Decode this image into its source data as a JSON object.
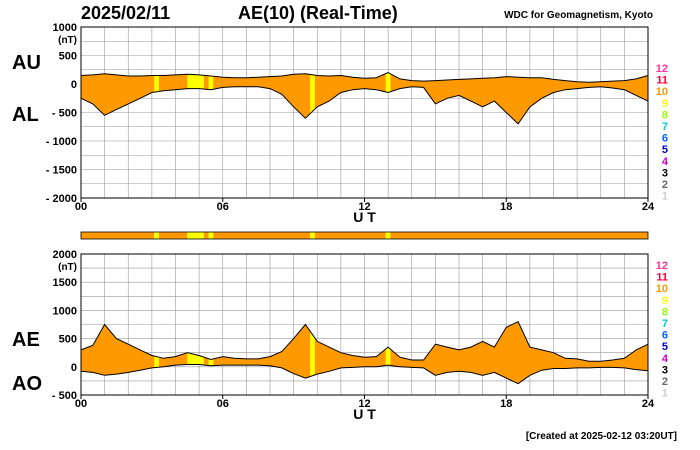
{
  "header": {
    "date": "2025/02/11",
    "index_name": "AE(10) (Real-Time)",
    "institute": "WDC for Geomagnetism, Kyoto"
  },
  "footer": {
    "created": "[Created at 2025-02-12 03:20UT]"
  },
  "colors": {
    "fill": "#ff9900",
    "highlight": "#ffff00",
    "line": "#000000",
    "grid": "#999999"
  },
  "station_scale": {
    "labels": [
      "12",
      "11",
      "10",
      "9",
      "8",
      "7",
      "6",
      "5",
      "4",
      "3",
      "2",
      "1"
    ],
    "colors": [
      "#ff3399",
      "#ff0033",
      "#ff9900",
      "#ffff00",
      "#99ff00",
      "#00cccc",
      "#0066ff",
      "#0000cc",
      "#cc00cc",
      "#000000",
      "#666666",
      "#cccccc"
    ]
  },
  "chart_data": [
    {
      "type": "area",
      "id": "au-al",
      "series_labels": [
        "AU",
        "AL"
      ],
      "unit": "(nT)",
      "ylim": [
        -2000,
        1000
      ],
      "yticks": [
        {
          "v": 1000,
          "t": "1000"
        },
        {
          "v": 500,
          "t": "500"
        },
        {
          "v": 0,
          "t": "0"
        },
        {
          "v": -500,
          "t": "- 500"
        },
        {
          "v": -1000,
          "t": "- 1000"
        },
        {
          "v": -1500,
          "t": "- 1500"
        },
        {
          "v": -2000,
          "t": "- 2000"
        }
      ],
      "xlim": [
        0,
        24
      ],
      "xticks": [
        {
          "v": 0,
          "t": "00"
        },
        {
          "v": 6,
          "t": "06"
        },
        {
          "v": 12,
          "t": "12"
        },
        {
          "v": 18,
          "t": "18"
        },
        {
          "v": 24,
          "t": "24"
        }
      ],
      "xlabel": "U T",
      "grid": true,
      "upper": {
        "hours": [
          0,
          0.5,
          1,
          1.5,
          2,
          2.5,
          3,
          3.5,
          4,
          4.5,
          5,
          5.5,
          6,
          6.5,
          7,
          7.5,
          8,
          8.5,
          9,
          9.5,
          10,
          10.5,
          11,
          11.5,
          12,
          12.5,
          13,
          13.5,
          14,
          14.5,
          15,
          15.5,
          16,
          16.5,
          17,
          17.5,
          18,
          18.5,
          19,
          19.5,
          20,
          20.5,
          21,
          21.5,
          22,
          22.5,
          23,
          23.5,
          24
        ],
        "values": [
          150,
          160,
          180,
          160,
          140,
          140,
          150,
          150,
          160,
          170,
          160,
          140,
          120,
          110,
          110,
          120,
          130,
          140,
          170,
          180,
          150,
          140,
          150,
          120,
          100,
          110,
          200,
          90,
          60,
          50,
          60,
          70,
          80,
          90,
          100,
          110,
          130,
          120,
          110,
          110,
          80,
          60,
          40,
          30,
          40,
          50,
          60,
          90,
          150
        ]
      },
      "lower": {
        "hours": [
          0,
          0.5,
          1,
          1.5,
          2,
          2.5,
          3,
          3.5,
          4,
          4.5,
          5,
          5.5,
          6,
          6.5,
          7,
          7.5,
          8,
          8.5,
          9,
          9.5,
          10,
          10.5,
          11,
          11.5,
          12,
          12.5,
          13,
          13.5,
          14,
          14.5,
          15,
          15.5,
          16,
          16.5,
          17,
          17.5,
          18,
          18.5,
          19,
          19.5,
          20,
          20.5,
          21,
          21.5,
          22,
          22.5,
          23,
          23.5,
          24
        ],
        "values": [
          -250,
          -350,
          -550,
          -450,
          -350,
          -250,
          -150,
          -120,
          -100,
          -80,
          -80,
          -100,
          -60,
          -50,
          -50,
          -50,
          -80,
          -180,
          -400,
          -600,
          -400,
          -300,
          -150,
          -100,
          -80,
          -100,
          -150,
          -80,
          -50,
          -60,
          -350,
          -250,
          -200,
          -300,
          -400,
          -300,
          -500,
          -700,
          -400,
          -250,
          -150,
          -100,
          -80,
          -60,
          -50,
          -70,
          -100,
          -200,
          -300
        ]
      },
      "highlight_bands": [
        [
          3.1,
          3.3
        ],
        [
          4.5,
          5.2
        ],
        [
          5.4,
          5.6
        ],
        [
          9.7,
          9.9
        ],
        [
          12.9,
          13.1
        ]
      ]
    },
    {
      "type": "area",
      "id": "ae-ao",
      "series_labels": [
        "AE",
        "AO"
      ],
      "unit": "(nT)",
      "ylim": [
        -500,
        2000
      ],
      "yticks": [
        {
          "v": 2000,
          "t": "2000"
        },
        {
          "v": 1500,
          "t": "1500"
        },
        {
          "v": 1000,
          "t": "1000"
        },
        {
          "v": 500,
          "t": "500"
        },
        {
          "v": 0,
          "t": "0"
        },
        {
          "v": -500,
          "t": "- 500"
        }
      ],
      "xlim": [
        0,
        24
      ],
      "xticks": [
        {
          "v": 0,
          "t": "00"
        },
        {
          "v": 6,
          "t": "06"
        },
        {
          "v": 12,
          "t": "12"
        },
        {
          "v": 18,
          "t": "18"
        },
        {
          "v": 24,
          "t": "24"
        }
      ],
      "xlabel": "U T",
      "grid": true,
      "upper": {
        "hours": [
          0,
          0.5,
          1,
          1.5,
          2,
          2.5,
          3,
          3.5,
          4,
          4.5,
          5,
          5.5,
          6,
          6.5,
          7,
          7.5,
          8,
          8.5,
          9,
          9.5,
          10,
          10.5,
          11,
          11.5,
          12,
          12.5,
          13,
          13.5,
          14,
          14.5,
          15,
          15.5,
          16,
          16.5,
          17,
          17.5,
          18,
          18.5,
          19,
          19.5,
          20,
          20.5,
          21,
          21.5,
          22,
          22.5,
          23,
          23.5,
          24
        ],
        "values": [
          300,
          380,
          750,
          500,
          400,
          300,
          200,
          150,
          180,
          250,
          200,
          130,
          180,
          150,
          140,
          140,
          180,
          270,
          500,
          750,
          450,
          350,
          250,
          200,
          170,
          180,
          350,
          170,
          120,
          120,
          400,
          350,
          300,
          350,
          450,
          350,
          700,
          800,
          350,
          300,
          250,
          150,
          140,
          100,
          100,
          120,
          150,
          300,
          400
        ]
      },
      "lower": {
        "hours": [
          0,
          0.5,
          1,
          1.5,
          2,
          2.5,
          3,
          3.5,
          4,
          4.5,
          5,
          5.5,
          6,
          6.5,
          7,
          7.5,
          8,
          8.5,
          9,
          9.5,
          10,
          10.5,
          11,
          11.5,
          12,
          12.5,
          13,
          13.5,
          14,
          14.5,
          15,
          15.5,
          16,
          16.5,
          17,
          17.5,
          18,
          18.5,
          19,
          19.5,
          20,
          20.5,
          21,
          21.5,
          22,
          22.5,
          23,
          23.5,
          24
        ],
        "values": [
          -80,
          -100,
          -150,
          -130,
          -100,
          -60,
          -20,
          0,
          30,
          40,
          40,
          20,
          30,
          30,
          30,
          30,
          20,
          -20,
          -120,
          -200,
          -130,
          -80,
          -20,
          -10,
          0,
          0,
          30,
          0,
          -10,
          -20,
          -150,
          -100,
          -80,
          -100,
          -150,
          -100,
          -200,
          -300,
          -150,
          -60,
          -30,
          -30,
          -20,
          -20,
          -10,
          -10,
          -20,
          -50,
          -70
        ]
      },
      "highlight_bands": [
        [
          3.1,
          3.3
        ],
        [
          4.5,
          5.2
        ],
        [
          5.4,
          5.6
        ],
        [
          9.7,
          9.9
        ],
        [
          12.9,
          13.1
        ]
      ]
    }
  ],
  "status_bar": {
    "segments": [
      {
        "from": 0,
        "to": 3.1,
        "status": "10"
      },
      {
        "from": 3.1,
        "to": 3.3,
        "status": "9"
      },
      {
        "from": 3.3,
        "to": 4.5,
        "status": "10"
      },
      {
        "from": 4.5,
        "to": 5.2,
        "status": "9"
      },
      {
        "from": 5.2,
        "to": 5.4,
        "status": "10"
      },
      {
        "from": 5.4,
        "to": 5.6,
        "status": "9"
      },
      {
        "from": 5.6,
        "to": 9.7,
        "status": "10"
      },
      {
        "from": 9.7,
        "to": 9.9,
        "status": "9"
      },
      {
        "from": 9.9,
        "to": 12.9,
        "status": "10"
      },
      {
        "from": 12.9,
        "to": 13.1,
        "status": "9"
      },
      {
        "from": 13.1,
        "to": 24,
        "status": "10"
      }
    ]
  }
}
